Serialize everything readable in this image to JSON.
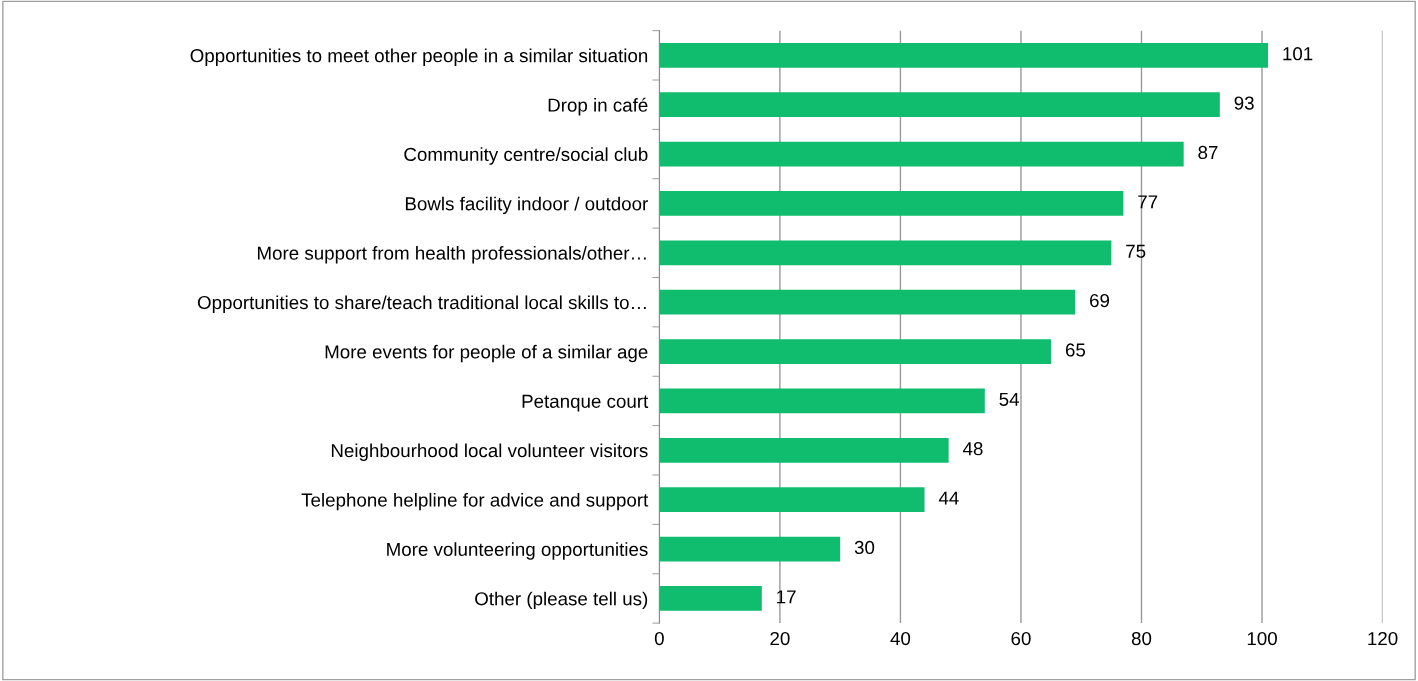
{
  "chart_data": {
    "type": "bar",
    "orientation": "horizontal",
    "categories": [
      "Opportunities to meet other people in a similar situation",
      "Drop in café",
      "Community centre/social club",
      "Bowls facility indoor / outdoor",
      "More support from health professionals/other…",
      "Opportunities to share/teach traditional local skills to…",
      "More events for people of a similar age",
      "Petanque court",
      "Neighbourhood local volunteer visitors",
      "Telephone helpline for advice and support",
      "More volunteering opportunities",
      "Other (please tell us)"
    ],
    "values": [
      101,
      93,
      87,
      77,
      75,
      69,
      65,
      54,
      48,
      44,
      30,
      17
    ],
    "color": "#10bd6e",
    "xlim": [
      0,
      120
    ],
    "xticks": [
      0,
      20,
      40,
      60,
      80,
      100,
      120
    ],
    "grid": "x",
    "data_labels": true
  }
}
